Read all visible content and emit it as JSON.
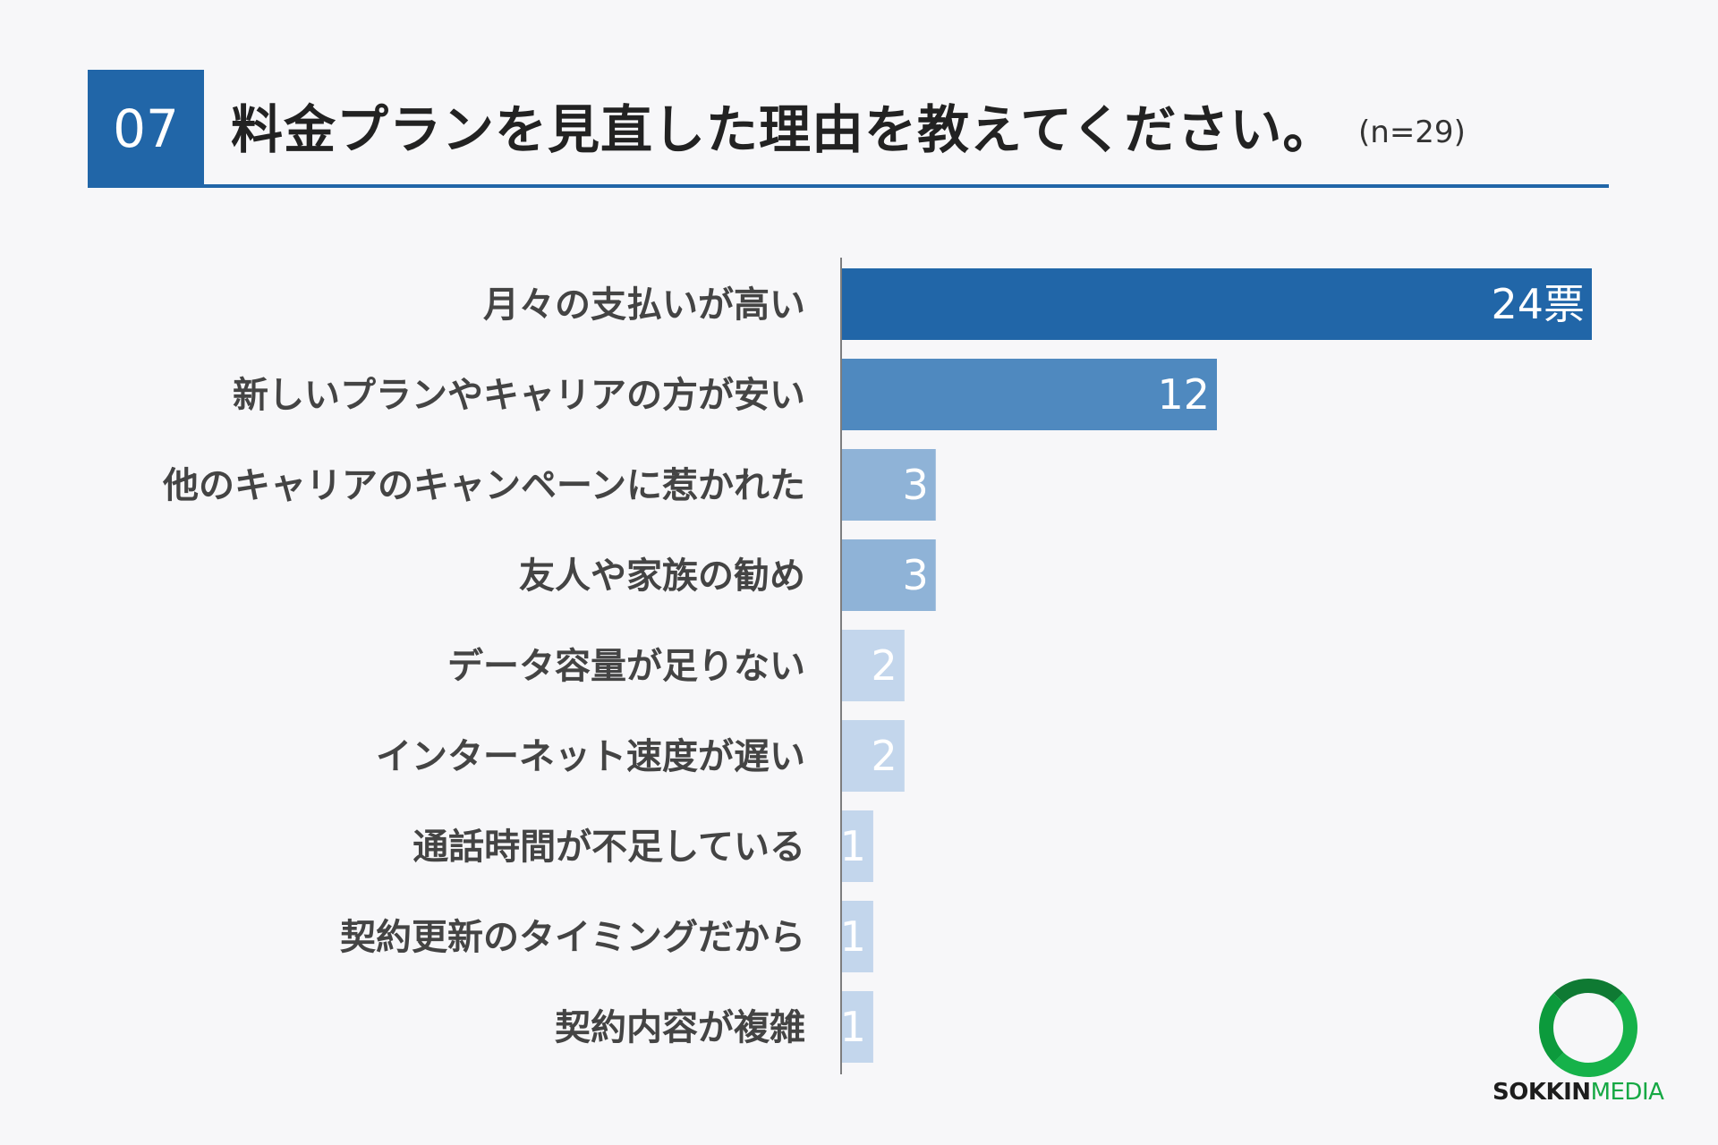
{
  "header": {
    "number": "07",
    "title": "料金プランを見直した理由を教えてください。",
    "subtitle": "(n=29)"
  },
  "colors": {
    "accent": "#2166a8",
    "bar_levels": [
      "#2166a8",
      "#4f89bf",
      "#8fb3d7",
      "#c3d6ec"
    ]
  },
  "chart_data": {
    "type": "bar",
    "orientation": "horizontal",
    "categories": [
      "月々の支払いが高い",
      "新しいプランやキャリアの方が安い",
      "他のキャリアのキャンペーンに惹かれた",
      "友人や家族の勧め",
      "データ容量が足りない",
      "インターネット速度が遅い",
      "通話時間が不足している",
      "契約更新のタイミングだから",
      "契約内容が複雑"
    ],
    "values": [
      24,
      12,
      3,
      3,
      2,
      2,
      1,
      1,
      1
    ],
    "value_labels": [
      "24票",
      "12",
      "3",
      "3",
      "2",
      "2",
      "1",
      "1",
      "1"
    ],
    "xlim": [
      0,
      24
    ],
    "grid": false
  },
  "logo": {
    "text_part1": "SOKKIN",
    "text_part2": "MEDIA"
  }
}
